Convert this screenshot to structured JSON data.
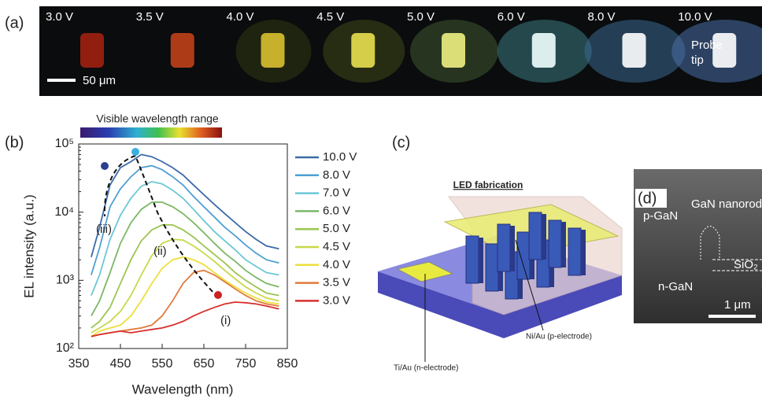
{
  "chart_data": {
    "type": "line",
    "panel_label": "(b)",
    "colorbar_label": "Visible wavelength range",
    "x_label": "Wavelength (nm)",
    "y_label": "EL intensity (a.u.)",
    "log_y": true,
    "grid": false,
    "x": [
      380,
      400,
      425,
      450,
      475,
      500,
      525,
      550,
      575,
      600,
      625,
      650,
      675,
      700,
      725,
      750,
      775,
      800,
      830
    ],
    "xlim": [
      350,
      850
    ],
    "xticks": [
      350,
      450,
      550,
      650,
      750,
      850
    ],
    "ylim": [
      100,
      100000
    ],
    "yticks": [
      {
        "value": 100,
        "label": "10²"
      },
      {
        "value": 1000,
        "label": "10³"
      },
      {
        "value": 10000,
        "label": "10⁴"
      },
      {
        "value": 100000,
        "label": "10⁵"
      }
    ],
    "annotations": [
      "(i)",
      "(ii)",
      "(iii)"
    ],
    "series": [
      {
        "name": "10.0 V",
        "color": "#3c6aa8",
        "values": [
          2200,
          6000,
          25000,
          45000,
          55000,
          70000,
          65000,
          55000,
          45000,
          35000,
          25000,
          18000,
          13000,
          9500,
          7000,
          5200,
          4000,
          3200,
          2900
        ]
      },
      {
        "name": "8.0 V",
        "color": "#4f9fd4",
        "values": [
          1200,
          3000,
          12000,
          22000,
          33000,
          45000,
          48000,
          42000,
          33000,
          25000,
          17000,
          12000,
          8500,
          6000,
          4500,
          3300,
          2500,
          2000,
          1800
        ]
      },
      {
        "name": "7.0 V",
        "color": "#6cc7d6",
        "values": [
          600,
          1200,
          4000,
          9000,
          16000,
          24000,
          28000,
          26000,
          21000,
          16000,
          11000,
          7500,
          5200,
          3800,
          2800,
          2000,
          1600,
          1300,
          1200
        ]
      },
      {
        "name": "6.0 V",
        "color": "#7ab866",
        "values": [
          300,
          500,
          1300,
          3500,
          7000,
          11000,
          14000,
          14000,
          12000,
          9500,
          7000,
          5000,
          3500,
          2500,
          1900,
          1400,
          1100,
          900,
          800
        ]
      },
      {
        "name": "5.0 V",
        "color": "#9bc552",
        "values": [
          200,
          250,
          400,
          900,
          2000,
          3800,
          5500,
          6500,
          6500,
          5500,
          4300,
          3200,
          2400,
          1800,
          1300,
          1000,
          800,
          650,
          600
        ]
      },
      {
        "name": "4.5 V",
        "color": "#c8d84a",
        "values": [
          170,
          200,
          250,
          350,
          600,
          1200,
          2300,
          3500,
          4000,
          3900,
          3200,
          2500,
          1900,
          1400,
          1050,
          800,
          650,
          550,
          500
        ]
      },
      {
        "name": "4.0 V",
        "color": "#eddf3b",
        "values": [
          150,
          180,
          200,
          220,
          300,
          500,
          900,
          1500,
          2000,
          2200,
          2000,
          1700,
          1300,
          1000,
          800,
          650,
          550,
          480,
          450
        ]
      },
      {
        "name": "3.5 V",
        "color": "#e07b3a",
        "values": [
          150,
          160,
          170,
          180,
          190,
          200,
          220,
          300,
          500,
          900,
          1300,
          1400,
          1200,
          950,
          750,
          600,
          500,
          450,
          420
        ]
      },
      {
        "name": "3.0 V",
        "color": "#d8302e",
        "values": [
          150,
          160,
          170,
          180,
          170,
          180,
          190,
          200,
          220,
          250,
          300,
          350,
          400,
          450,
          480,
          470,
          450,
          420,
          380
        ]
      }
    ]
  },
  "panel_a": {
    "label": "(a)",
    "voltages": [
      "3.0 V",
      "3.5 V",
      "4.0 V",
      "4.5 V",
      "5.0 V",
      "6.0 V",
      "8.0 V",
      "10.0 V"
    ],
    "scale_bar": "50 μm",
    "probe_tip": [
      "Probe",
      "tip"
    ]
  },
  "panel_c": {
    "label": "(c)",
    "title": "LED fabrication",
    "n_electrode": "Ti/Au (n-electrode)",
    "p_electrode": "Ni/Au (p-electrode)"
  },
  "panel_d": {
    "label": "(d)",
    "p_gan": "p-GaN",
    "nanorod": "GaN nanorod",
    "sio2": "SiO₂",
    "n_gan": "n-GaN",
    "scale_bar": "1 μm"
  }
}
